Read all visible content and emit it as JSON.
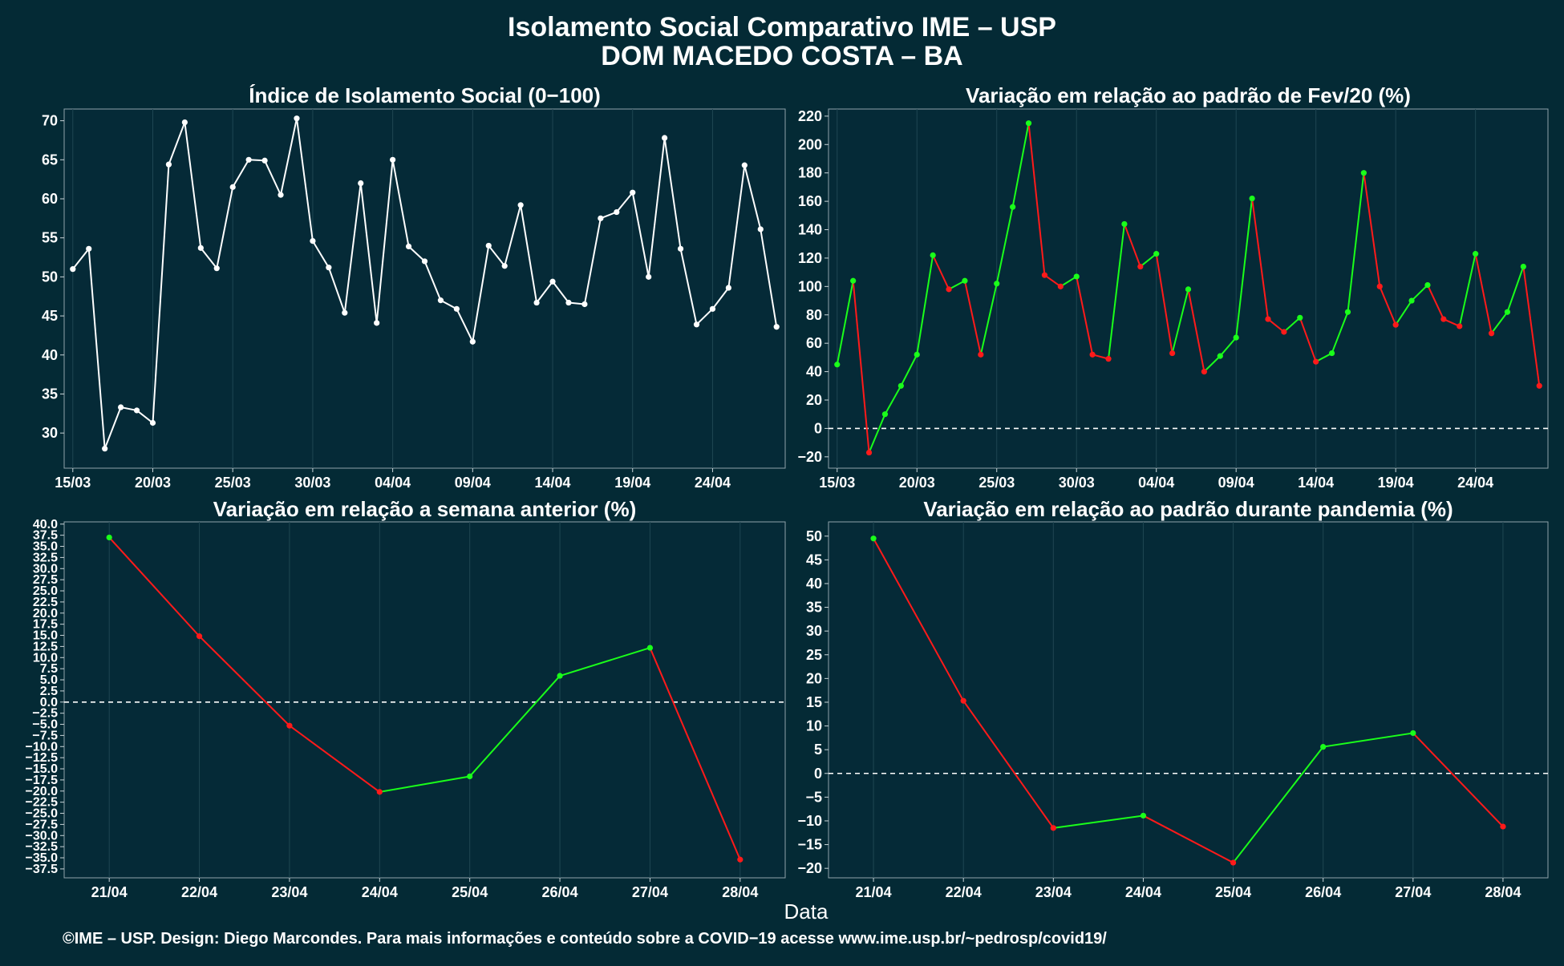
{
  "title_line1": "Isolamento Social Comparativo IME – USP",
  "title_line2": "DOM MACEDO COSTA – BA",
  "xlabel": "Data",
  "footer": "©IME – USP. Design: Diego Marcondes. Para mais informações e conteúdo sobre a COVID−19 acesse www.ime.usp.br/~pedrosp/covid19/",
  "colors": {
    "background": "#042a35",
    "white_series": "#ffffff",
    "up": "#1aff1a",
    "down": "#ff1a1a"
  },
  "chart_data": [
    {
      "type": "line",
      "title": "Índice de Isolamento Social (0−100)",
      "color_mode": "white",
      "x": [
        "15/03",
        "16/03",
        "17/03",
        "18/03",
        "19/03",
        "20/03",
        "21/03",
        "22/03",
        "23/03",
        "24/03",
        "25/03",
        "26/03",
        "27/03",
        "28/03",
        "29/03",
        "30/03",
        "31/03",
        "01/04",
        "02/04",
        "03/04",
        "04/04",
        "05/04",
        "06/04",
        "07/04",
        "08/04",
        "09/04",
        "10/04",
        "11/04",
        "12/04",
        "13/04",
        "14/04",
        "15/04",
        "16/04",
        "17/04",
        "18/04",
        "19/04",
        "20/04",
        "21/04",
        "22/04",
        "23/04",
        "24/04",
        "25/04",
        "26/04",
        "27/04",
        "28/04"
      ],
      "xticks": [
        "15/03",
        "20/03",
        "25/03",
        "30/03",
        "04/04",
        "09/04",
        "14/04",
        "19/04",
        "24/04"
      ],
      "values": [
        51.0,
        53.6,
        28.0,
        33.3,
        32.9,
        31.3,
        64.4,
        69.8,
        53.7,
        51.1,
        61.5,
        65.0,
        64.9,
        60.5,
        70.3,
        54.6,
        51.2,
        45.4,
        62.0,
        44.1,
        65.0,
        53.9,
        52.0,
        47.0,
        45.9,
        41.7,
        54.0,
        51.4,
        59.2,
        46.7,
        49.4,
        46.7,
        46.5,
        57.5,
        58.3,
        60.8,
        50.0,
        67.8,
        53.6,
        43.9,
        45.9,
        48.6,
        64.3,
        56.1,
        43.6
      ],
      "ylim": [
        25.5,
        71.5
      ],
      "yticks": [
        30,
        35,
        40,
        45,
        50,
        55,
        60,
        65,
        70
      ],
      "zero_line": false
    },
    {
      "type": "line",
      "title": "Variação em relação ao padrão de Fev/20 (%)",
      "color_mode": "updown",
      "x": [
        "15/03",
        "16/03",
        "17/03",
        "18/03",
        "19/03",
        "20/03",
        "21/03",
        "22/03",
        "23/03",
        "24/03",
        "25/03",
        "26/03",
        "27/03",
        "28/03",
        "29/03",
        "30/03",
        "31/03",
        "01/04",
        "02/04",
        "03/04",
        "04/04",
        "05/04",
        "06/04",
        "07/04",
        "08/04",
        "09/04",
        "10/04",
        "11/04",
        "12/04",
        "13/04",
        "14/04",
        "15/04",
        "16/04",
        "17/04",
        "18/04",
        "19/04",
        "20/04",
        "21/04",
        "22/04",
        "23/04",
        "24/04",
        "25/04",
        "26/04",
        "27/04",
        "28/04"
      ],
      "xticks": [
        "15/03",
        "20/03",
        "25/03",
        "30/03",
        "04/04",
        "09/04",
        "14/04",
        "19/04",
        "24/04"
      ],
      "values": [
        45,
        104,
        -17,
        10,
        30,
        52,
        122,
        98,
        104,
        52,
        102,
        156,
        215,
        108,
        100,
        107,
        52,
        49,
        144,
        114,
        123,
        53,
        98,
        40,
        51,
        64,
        162,
        77,
        68,
        78,
        47,
        53,
        82,
        180,
        100,
        73,
        90,
        101,
        77,
        72,
        123,
        67,
        82,
        114,
        30
      ],
      "ylim": [
        -28,
        225
      ],
      "yticks": [
        -20,
        0,
        20,
        40,
        60,
        80,
        100,
        120,
        140,
        160,
        180,
        200,
        220
      ],
      "zero_line": true
    },
    {
      "type": "line",
      "title": "Variação em relação a semana anterior (%)",
      "color_mode": "updown",
      "x": [
        "21/04",
        "22/04",
        "23/04",
        "24/04",
        "25/04",
        "26/04",
        "27/04",
        "28/04"
      ],
      "xticks": [
        "21/04",
        "22/04",
        "23/04",
        "24/04",
        "25/04",
        "26/04",
        "27/04",
        "28/04"
      ],
      "values": [
        37.0,
        14.8,
        -5.3,
        -20.2,
        -16.7,
        5.9,
        12.2,
        -35.4
      ],
      "ylim": [
        -39.5,
        40.5
      ],
      "yticks": [
        -37.5,
        -35.0,
        -32.5,
        -30.0,
        -27.5,
        -25.0,
        -22.5,
        -20.0,
        -17.5,
        -15.0,
        -12.5,
        -10.0,
        -7.5,
        -5.0,
        -2.5,
        0.0,
        2.5,
        5.0,
        7.5,
        10.0,
        12.5,
        15.0,
        17.5,
        20.0,
        22.5,
        25.0,
        27.5,
        30.0,
        32.5,
        35.0,
        37.5,
        40.0
      ],
      "zero_line": true
    },
    {
      "type": "line",
      "title": "Variação em relação ao padrão durante pandemia (%)",
      "color_mode": "updown",
      "x": [
        "21/04",
        "22/04",
        "23/04",
        "24/04",
        "25/04",
        "26/04",
        "27/04",
        "28/04"
      ],
      "xticks": [
        "21/04",
        "22/04",
        "23/04",
        "24/04",
        "25/04",
        "26/04",
        "27/04",
        "28/04"
      ],
      "values": [
        49.5,
        15.3,
        -11.5,
        -8.9,
        -18.8,
        5.6,
        8.5,
        -11.2
      ],
      "ylim": [
        -22,
        53
      ],
      "yticks": [
        -20,
        -15,
        -10,
        -5,
        0,
        5,
        10,
        15,
        20,
        25,
        30,
        35,
        40,
        45,
        50
      ],
      "zero_line": true
    }
  ]
}
